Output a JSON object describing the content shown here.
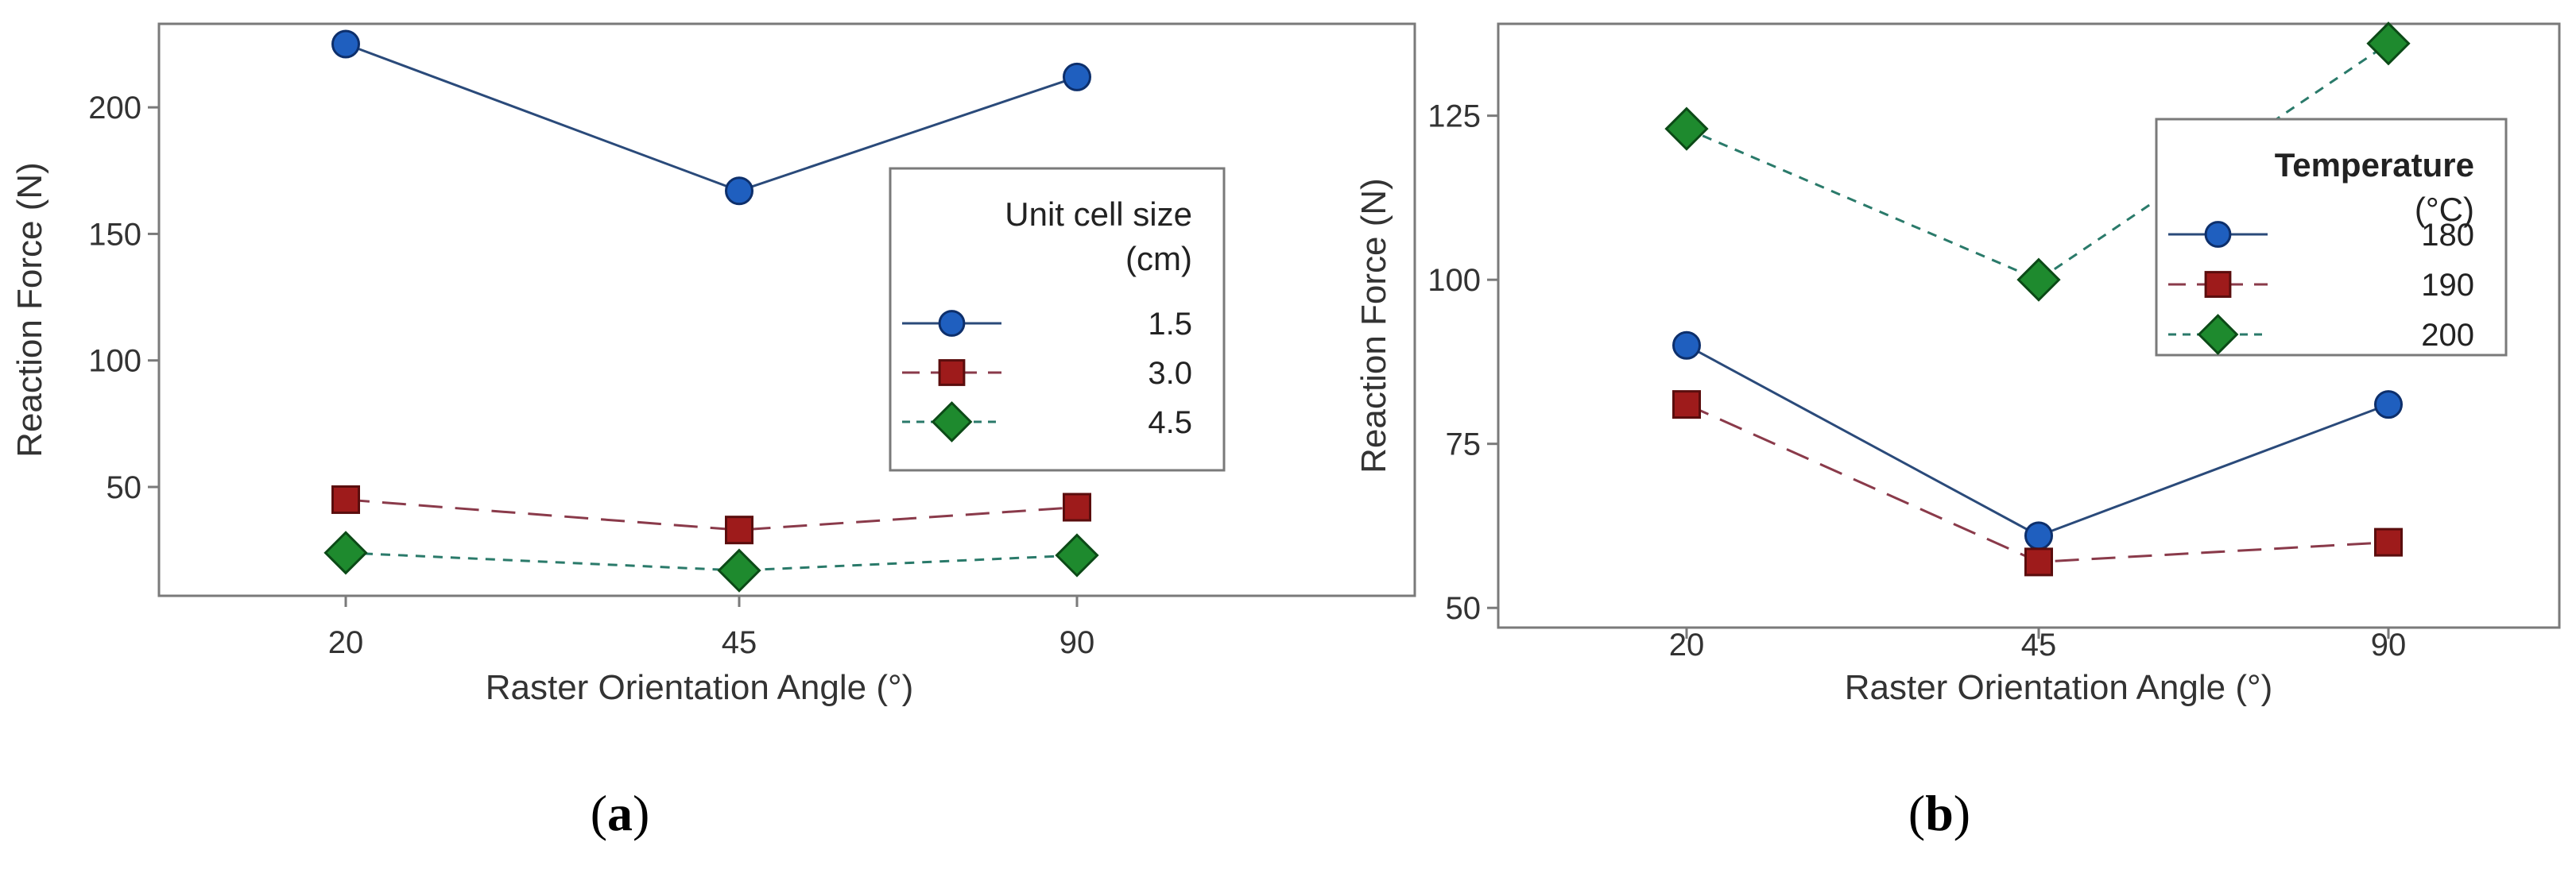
{
  "colors": {
    "series": [
      "#1f5fbf",
      "#9e1b1b",
      "#1e8a2e"
    ],
    "lines": [
      "#2a4a7a",
      "#8a3a4a",
      "#2a7a6a"
    ],
    "frame": "#7a7a7a",
    "text": "#333333"
  },
  "chart_data": [
    {
      "panel": "a",
      "panel_label_open": "(",
      "panel_label_letter": "a",
      "panel_label_close": ")",
      "type": "line",
      "title": "",
      "xlabel": "Raster Orientation Angle (°)",
      "ylabel": "Reaction Force (N)",
      "categories": [
        "20",
        "45",
        "90"
      ],
      "ylim": [
        7,
        233
      ],
      "yticks": [
        50,
        100,
        150,
        200
      ],
      "legend": {
        "title_lines": [
          "Unit cell size",
          "(cm)"
        ],
        "placement": "center-right"
      },
      "series": [
        {
          "name": "1.5",
          "marker": "circle",
          "dash": "solid",
          "values": [
            225,
            167,
            212
          ]
        },
        {
          "name": "3.0",
          "marker": "square",
          "dash": "longdash",
          "values": [
            45,
            33,
            42
          ]
        },
        {
          "name": "4.5",
          "marker": "diamond",
          "dash": "shortdash",
          "values": [
            24,
            17,
            23
          ]
        }
      ]
    },
    {
      "panel": "b",
      "panel_label_open": "(",
      "panel_label_letter": "b",
      "panel_label_close": ")",
      "type": "line",
      "title": "",
      "xlabel": "Raster Orientation Angle (°)",
      "ylabel": "Reaction Force (N)",
      "categories": [
        "20",
        "45",
        "90"
      ],
      "ylim": [
        47,
        139
      ],
      "yticks": [
        50,
        75,
        100,
        125
      ],
      "legend": {
        "title_lines": [
          "Temperature",
          "(°C)"
        ],
        "placement": "top-right"
      },
      "series": [
        {
          "name": "180",
          "marker": "circle",
          "dash": "solid",
          "values": [
            90,
            61,
            81
          ]
        },
        {
          "name": "190",
          "marker": "square",
          "dash": "longdash",
          "values": [
            81,
            57,
            60
          ]
        },
        {
          "name": "200",
          "marker": "diamond",
          "dash": "shortdash",
          "values": [
            123,
            100,
            136
          ]
        }
      ]
    }
  ]
}
